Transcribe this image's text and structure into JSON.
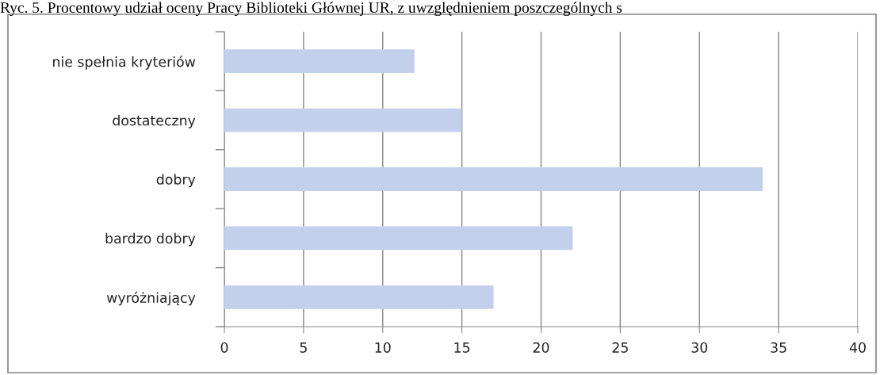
{
  "chart_data": {
    "type": "bar",
    "orientation": "horizontal",
    "title": "Ryc. 5. Procentowy udział oceny Pracy Biblioteki Głównej UR, z uwzględnieniem poszczególnych s",
    "categories": [
      "nie spełnia kryteriów",
      "dostateczny",
      "dobry",
      "bardzo dobry",
      "wyróżniający"
    ],
    "values": [
      12,
      15,
      34,
      22,
      17
    ],
    "color": "#c3d0ec",
    "xlim": [
      0,
      40
    ],
    "xticks": [
      0,
      5,
      10,
      15,
      20,
      25,
      30,
      35,
      40
    ],
    "grid": "x",
    "legend": false
  }
}
